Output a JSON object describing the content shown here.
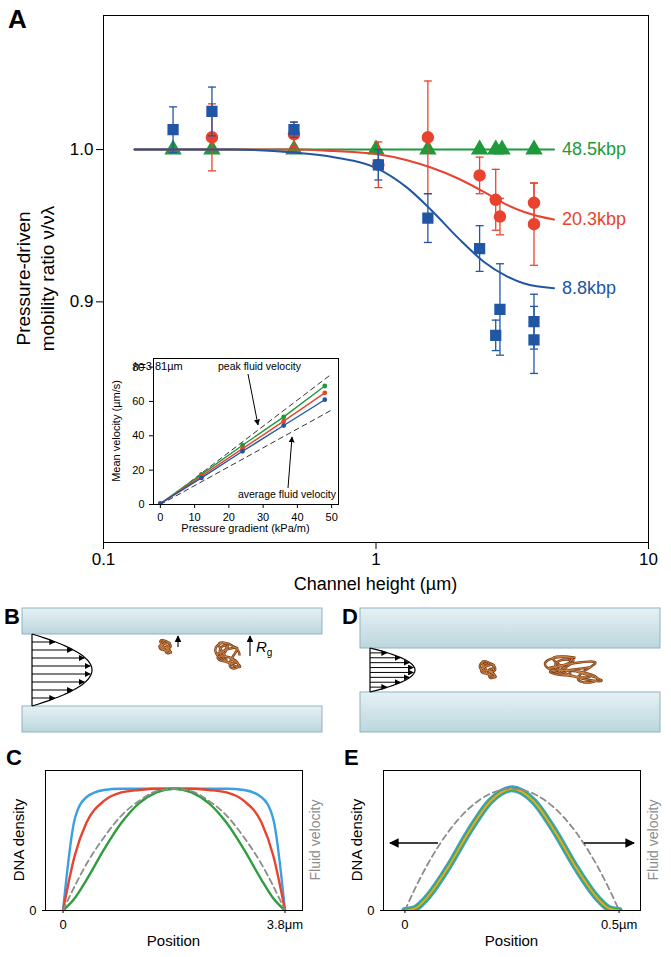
{
  "chart_data": [
    {
      "type": "scatter",
      "panel_label": "A",
      "x_label": "Channel height (µm)",
      "y_label": "Pressure-driven mobility ratio ν/νλ",
      "log": "x",
      "xlim": [
        0.1,
        10
      ],
      "xticks": [
        0.1,
        1,
        10
      ],
      "ylim": [
        0.742,
        1.088
      ],
      "yticks": [
        0.9,
        {
          "value": 1,
          "label": "1.0"
        }
      ],
      "series": [
        {
          "name": "48.5kbp",
          "color": "#1e9a3c",
          "marker": "triangle",
          "x": [
            0.18,
            0.25,
            0.5,
            1.0,
            1.55,
            2.4,
            2.75,
            2.9,
            3.8
          ],
          "values": [
            1,
            1,
            1,
            1,
            1,
            1,
            1,
            1,
            1
          ],
          "fit_x": [
            0.13,
            4.5
          ],
          "fit": [
            1,
            1
          ]
        },
        {
          "name": "20.3kbp",
          "color": "#e8432e",
          "marker": "circle",
          "x": [
            0.25,
            0.5,
            1.02,
            1.55,
            2.4,
            2.75,
            2.85,
            3.8,
            3.8
          ],
          "values": [
            1.008,
            1.01,
            0.99,
            1.008,
            0.983,
            0.967,
            0.956,
            0.965,
            0.951
          ],
          "errors": [
            0.022,
            0.008,
            0.015,
            0.037,
            0.012,
            0.02,
            0.012,
            0.013,
            0.027
          ],
          "fit_x": [
            0.13,
            0.3,
            0.5,
            0.7,
            1.0,
            1.3,
            1.6,
            2.0,
            2.5,
            3.0,
            3.5,
            4.5
          ],
          "fit": [
            1.0,
            1.0,
            1.0,
            0.999,
            0.997,
            0.993,
            0.988,
            0.981,
            0.972,
            0.964,
            0.959,
            0.954
          ]
        },
        {
          "name": "8.8kbp",
          "color": "#2156a5",
          "marker": "square",
          "x": [
            0.18,
            0.25,
            0.5,
            1.02,
            1.55,
            2.4,
            2.75,
            2.85,
            3.8,
            3.8
          ],
          "values": [
            1.013,
            1.025,
            1.013,
            0.99,
            0.955,
            0.935,
            0.878,
            0.895,
            0.875,
            0.887
          ],
          "errors": [
            0.015,
            0.016,
            0.005,
            0.01,
            0.016,
            0.015,
            0.01,
            0.03,
            0.022,
            0.018
          ],
          "fit_x": [
            0.13,
            0.3,
            0.5,
            0.7,
            1.0,
            1.3,
            1.6,
            2.0,
            2.5,
            3.0,
            3.5,
            4.5
          ],
          "fit": [
            1.0,
            1.0,
            0.998,
            0.995,
            0.988,
            0.975,
            0.96,
            0.942,
            0.926,
            0.917,
            0.912,
            0.909
          ]
        }
      ]
    },
    {
      "type": "line",
      "annotation": "h=3.81µm",
      "x_label": "Pressure gradient (kPa/m)",
      "y_label": "Mean velocity (µm/s)",
      "xlim": [
        -2,
        52
      ],
      "xticks": [
        0,
        10,
        20,
        30,
        40,
        50
      ],
      "ylim": [
        0,
        85
      ],
      "yticks": [
        0,
        20,
        40,
        60,
        80
      ],
      "series": [
        {
          "name": "peak fluid velocity",
          "color": "#333333",
          "line_style": "dashed",
          "x": [
            0,
            50
          ],
          "values": [
            0,
            76
          ]
        },
        {
          "name": "average fluid velocity",
          "color": "#333333",
          "line_style": "dashed",
          "x": [
            0,
            50
          ],
          "values": [
            0,
            55
          ]
        },
        {
          "color": "#1e9a3c",
          "marker": "circle",
          "x": [
            0,
            12,
            24,
            36,
            48
          ],
          "values": [
            0.5,
            17.5,
            34.5,
            51,
            69
          ]
        },
        {
          "color": "#e8432e",
          "marker": "circle",
          "x": [
            0,
            12,
            24,
            36,
            48
          ],
          "values": [
            0.5,
            16.5,
            32.5,
            48.5,
            65
          ]
        },
        {
          "color": "#2156a5",
          "marker": "circle",
          "x": [
            0,
            12,
            24,
            36,
            48
          ],
          "values": [
            0.5,
            15.5,
            31,
            46,
            61
          ]
        }
      ]
    },
    {
      "type": "line",
      "panel_label": "C",
      "x_label": "Position",
      "y_label": "DNA density",
      "xlim": [
        -0.3,
        4.1
      ],
      "xticks": [
        0,
        {
          "value": 3.8,
          "label": "3.8μm"
        }
      ],
      "ylim": [
        0,
        1.15
      ],
      "yticks": [
        0
      ],
      "x": [
        0,
        0.2,
        0.4,
        0.7,
        1.0,
        1.3,
        1.6,
        1.9,
        2.2,
        2.5,
        2.8,
        3.1,
        3.4,
        3.6,
        3.8
      ],
      "series": [
        {
          "color": "#3aa0e0",
          "values": [
            0,
            0.75,
            0.93,
            0.99,
            1,
            1,
            1,
            1,
            1,
            1,
            1,
            0.99,
            0.93,
            0.75,
            0
          ]
        },
        {
          "color": "#e8432e",
          "values": [
            0,
            0.45,
            0.72,
            0.9,
            0.97,
            0.99,
            1,
            1,
            1,
            0.99,
            0.97,
            0.9,
            0.72,
            0.45,
            0
          ]
        },
        {
          "color": "#2e9e3e",
          "values": [
            0,
            0.1,
            0.25,
            0.5,
            0.72,
            0.88,
            0.97,
            1,
            0.97,
            0.88,
            0.72,
            0.5,
            0.25,
            0.1,
            0
          ]
        },
        {
          "name": "Fluid velocity",
          "color": "#8c8c8c",
          "line_style": "dashed",
          "values": [
            0,
            0.2,
            0.38,
            0.6,
            0.78,
            0.9,
            0.98,
            1,
            0.98,
            0.9,
            0.78,
            0.6,
            0.38,
            0.2,
            0
          ]
        }
      ]
    },
    {
      "type": "line",
      "panel_label": "E",
      "x_label": "Position",
      "y_label": "DNA density",
      "xlim": [
        -0.05,
        0.55
      ],
      "xticks": [
        0,
        {
          "value": 0.5,
          "label": "0.5µm"
        }
      ],
      "ylim": [
        0,
        1.15
      ],
      "yticks": [
        0
      ],
      "x": [
        0,
        0.025,
        0.05,
        0.1,
        0.15,
        0.2,
        0.25,
        0.3,
        0.35,
        0.4,
        0.45,
        0.475,
        0.5
      ],
      "series": [
        {
          "color": "#3aa0e0",
          "values": [
            0,
            0.02,
            0.1,
            0.35,
            0.65,
            0.9,
            1,
            0.9,
            0.65,
            0.35,
            0.1,
            0.02,
            0
          ]
        },
        {
          "color": "#3cae4a",
          "values": [
            0,
            0.02,
            0.1,
            0.35,
            0.65,
            0.9,
            1,
            0.9,
            0.65,
            0.35,
            0.1,
            0.02,
            0
          ]
        },
        {
          "color": "#e8a33a",
          "values": [
            0,
            0.02,
            0.1,
            0.35,
            0.65,
            0.9,
            1,
            0.9,
            0.65,
            0.35,
            0.1,
            0.02,
            0
          ]
        },
        {
          "name": "Fluid velocity",
          "color": "#8c8c8c",
          "line_style": "dashed",
          "values": [
            0,
            0.19,
            0.36,
            0.64,
            0.84,
            0.96,
            1,
            0.96,
            0.84,
            0.64,
            0.36,
            0.19,
            0
          ]
        }
      ]
    }
  ],
  "diagrams": [
    {
      "panel_label": "B",
      "rg_label": "R",
      "rg_subscript": "g"
    },
    {
      "panel_label": "D"
    }
  ]
}
